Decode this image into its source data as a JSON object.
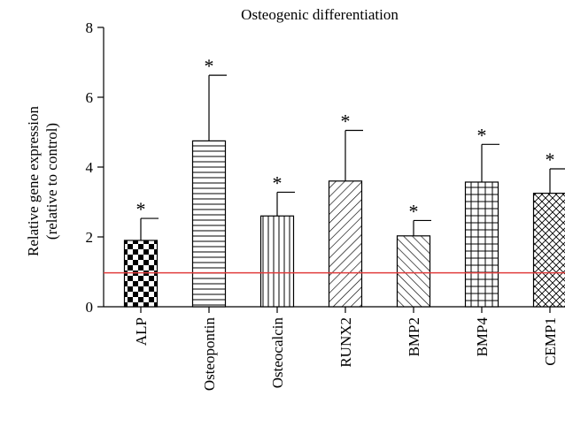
{
  "chart_data": {
    "type": "bar",
    "title": "Osteogenic differentiation",
    "ylabel_lines": [
      "Relative gene expression",
      "(relative to control)"
    ],
    "xlabel": "",
    "ylim": [
      0,
      8
    ],
    "yticks": [
      0,
      2,
      4,
      6,
      8
    ],
    "categories": [
      "ALP",
      "Osteopontin",
      "Osteocalcin",
      "RUNX2",
      "BMP2",
      "BMP4",
      "CEMP1"
    ],
    "values": [
      1.9,
      4.75,
      2.6,
      3.6,
      2.03,
      3.57,
      3.25
    ],
    "error_upper": [
      2.53,
      6.63,
      3.28,
      5.05,
      2.47,
      4.65,
      3.95
    ],
    "significance": [
      "*",
      "*",
      "*",
      "*",
      "*",
      "*",
      "*"
    ],
    "fill_patterns": [
      "checkerboard",
      "horizontal-lines",
      "vertical-lines",
      "diagonal-lines",
      "back-diagonal-lines",
      "grid",
      "diagonal-crosshatch"
    ],
    "reference_line": {
      "value": 0.97,
      "color": "#e03c3c"
    },
    "grid": false,
    "legend": "none"
  }
}
